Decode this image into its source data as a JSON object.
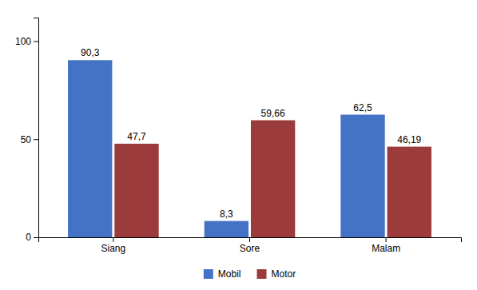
{
  "chart_data": {
    "type": "bar",
    "categories": [
      "Siang",
      "Sore",
      "Malam"
    ],
    "series": [
      {
        "name": "Mobil",
        "color": "#4472C4",
        "values": [
          90.3,
          8.3,
          62.5
        ],
        "value_labels": [
          "90,3",
          "8,3",
          "62,5"
        ]
      },
      {
        "name": "Motor",
        "color": "#9C3B3B",
        "values": [
          47.7,
          59.66,
          46.19
        ],
        "value_labels": [
          "47,7",
          "59,66",
          "46,19"
        ]
      }
    ],
    "ylim": [
      0,
      112
    ],
    "yticks": [
      0,
      50,
      100
    ],
    "data_labels": true,
    "grid": false,
    "legend": "bottom"
  }
}
